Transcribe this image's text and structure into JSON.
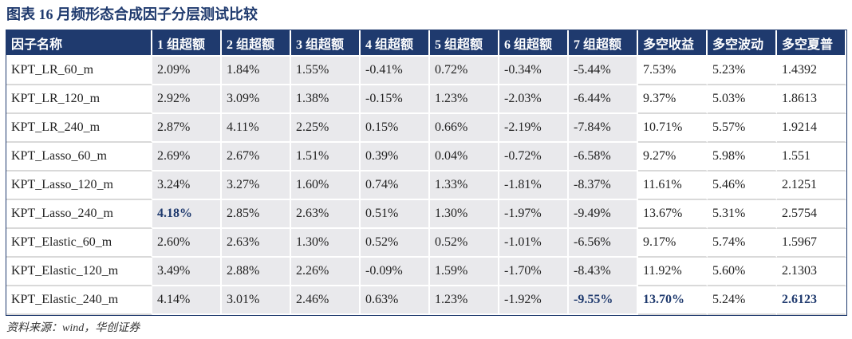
{
  "title": "图表 16 月频形态合成因子分层测试比较",
  "table": {
    "header": [
      "因子名称",
      "1 组超额",
      "2 组超额",
      "3 组超额",
      "4 组超额",
      "5 组超额",
      "6 组超额",
      "7 组超额",
      "多空收益",
      "多空波动",
      "多空夏普"
    ],
    "rows": [
      [
        "KPT_LR_60_m",
        "2.09%",
        "1.84%",
        "1.55%",
        "-0.41%",
        "0.72%",
        "-0.34%",
        "-5.44%",
        "7.53%",
        "5.23%",
        "1.4392"
      ],
      [
        "KPT_LR_120_m",
        "2.92%",
        "3.09%",
        "1.38%",
        "-0.15%",
        "1.23%",
        "-2.03%",
        "-6.44%",
        "9.37%",
        "5.03%",
        "1.8613"
      ],
      [
        "KPT_LR_240_m",
        "2.87%",
        "4.11%",
        "2.25%",
        "0.15%",
        "0.66%",
        "-2.19%",
        "-7.84%",
        "10.71%",
        "5.57%",
        "1.9214"
      ],
      [
        "KPT_Lasso_60_m",
        "2.69%",
        "2.67%",
        "1.51%",
        "0.39%",
        "0.04%",
        "-0.72%",
        "-6.58%",
        "9.27%",
        "5.98%",
        "1.551"
      ],
      [
        "KPT_Lasso_120_m",
        "3.24%",
        "3.27%",
        "1.60%",
        "0.74%",
        "1.33%",
        "-1.81%",
        "-8.37%",
        "11.61%",
        "5.46%",
        "2.1251"
      ],
      [
        "KPT_Lasso_240_m",
        "4.18%",
        "2.85%",
        "2.63%",
        "0.51%",
        "1.30%",
        "-1.97%",
        "-9.49%",
        "13.67%",
        "5.31%",
        "2.5754"
      ],
      [
        "KPT_Elastic_60_m",
        "2.60%",
        "2.63%",
        "1.30%",
        "0.52%",
        "0.52%",
        "-1.01%",
        "-6.56%",
        "9.17%",
        "5.74%",
        "1.5967"
      ],
      [
        "KPT_Elastic_120_m",
        "3.49%",
        "2.88%",
        "2.26%",
        "-0.09%",
        "1.59%",
        "-1.70%",
        "-8.43%",
        "11.92%",
        "5.60%",
        "2.1303"
      ],
      [
        "KPT_Elastic_240_m",
        "4.14%",
        "3.01%",
        "2.46%",
        "0.63%",
        "1.23%",
        "-1.92%",
        "-9.55%",
        "13.70%",
        "5.24%",
        "2.6123"
      ]
    ]
  },
  "source": "资料来源：wind，华创证券"
}
